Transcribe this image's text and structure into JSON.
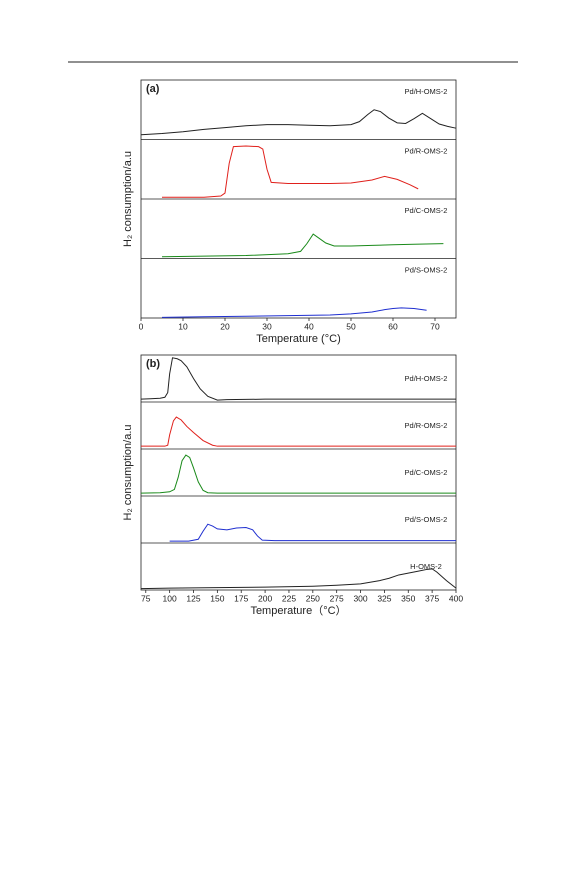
{
  "chart_data": [
    {
      "type": "line",
      "panel_label": "(a)",
      "xlabel": "Temperature (°C)",
      "ylabel": "H₂ consumption/a.u",
      "xlim": [
        0,
        75
      ],
      "xticks": [
        0,
        10,
        20,
        30,
        40,
        50,
        60,
        70
      ],
      "series": [
        {
          "name": "Pd/H-OMS-2",
          "color": "#222222",
          "x": [
            0,
            5,
            10,
            15,
            20,
            25,
            30,
            35,
            40,
            45,
            50,
            52,
            54,
            55.5,
            57,
            59,
            61,
            63,
            65,
            67,
            69,
            71,
            73,
            75
          ],
          "values": [
            8,
            10,
            13,
            17,
            20,
            23,
            25,
            25,
            24,
            23,
            25,
            30,
            42,
            50,
            47,
            36,
            28,
            27,
            35,
            44,
            35,
            26,
            22,
            19
          ]
        },
        {
          "name": "Pd/R-OMS-2",
          "color": "#e0201b",
          "x": [
            5,
            10,
            15,
            19,
            20,
            21,
            22,
            25,
            28,
            29,
            30,
            31,
            35,
            40,
            45,
            50,
            55,
            58,
            61,
            64,
            66
          ],
          "values": [
            3,
            3,
            3,
            5,
            10,
            60,
            88,
            89,
            88,
            84,
            50,
            28,
            26,
            26,
            26,
            27,
            32,
            38,
            33,
            24,
            17
          ]
        },
        {
          "name": "Pd/C-OMS-2",
          "color": "#1a8a1a",
          "x": [
            5,
            15,
            25,
            35,
            38,
            39.5,
            41,
            42,
            44,
            46,
            50,
            55,
            60,
            65,
            72
          ],
          "values": [
            3,
            4,
            5,
            8,
            12,
            25,
            41,
            36,
            26,
            21,
            21,
            22,
            23,
            24,
            25
          ]
        },
        {
          "name": "Pd/S-OMS-2",
          "color": "#1f2fd0",
          "x": [
            5,
            15,
            25,
            35,
            45,
            50,
            55,
            58,
            60,
            62,
            65,
            68
          ],
          "values": [
            1,
            2,
            3,
            4,
            5,
            7,
            10,
            14,
            16,
            17,
            16,
            13
          ]
        }
      ]
    },
    {
      "type": "line",
      "panel_label": "(b)",
      "xlabel": "Temperature（°C）",
      "ylabel": "H₂ consumption/a.u",
      "xlim": [
        70,
        400
      ],
      "xticks": [
        75,
        100,
        125,
        150,
        175,
        200,
        225,
        250,
        275,
        300,
        325,
        350,
        375,
        400
      ],
      "series": [
        {
          "name": "Pd/H-OMS-2",
          "color": "#222222",
          "x": [
            70,
            80,
            90,
            95,
            98,
            100,
            103,
            108,
            112,
            118,
            125,
            132,
            140,
            150,
            160,
            200,
            300,
            400
          ],
          "values": [
            6,
            7,
            8,
            10,
            20,
            60,
            94,
            92,
            88,
            75,
            50,
            28,
            12,
            4,
            5,
            6,
            6,
            6
          ]
        },
        {
          "name": "Pd/R-OMS-2",
          "color": "#e0201b",
          "x": [
            70,
            90,
            95,
            98,
            100,
            104,
            107,
            112,
            118,
            125,
            135,
            145,
            150,
            200,
            300,
            400
          ],
          "values": [
            6,
            6,
            6,
            8,
            30,
            60,
            68,
            62,
            48,
            35,
            18,
            8,
            6,
            6,
            6,
            6
          ]
        },
        {
          "name": "Pd/C-OMS-2",
          "color": "#1a8a1a",
          "x": [
            70,
            90,
            100,
            105,
            109,
            113,
            117,
            121,
            125,
            130,
            135,
            140,
            150,
            200,
            300,
            400
          ],
          "values": [
            6,
            7,
            9,
            14,
            40,
            75,
            87,
            82,
            60,
            30,
            12,
            7,
            6,
            6,
            6,
            6
          ]
        },
        {
          "name": "Pd/S-OMS-2",
          "color": "#1f2fd0",
          "x": [
            100,
            110,
            120,
            130,
            135,
            140,
            145,
            150,
            160,
            170,
            180,
            187,
            192,
            197,
            210,
            250,
            300,
            400
          ],
          "values": [
            4,
            4,
            4,
            8,
            25,
            40,
            36,
            30,
            28,
            32,
            33,
            28,
            15,
            6,
            5,
            5,
            5,
            5
          ]
        },
        {
          "name": "H-OMS-2",
          "color": "#222222",
          "x": [
            70,
            100,
            150,
            200,
            250,
            275,
            300,
            320,
            330,
            340,
            350,
            360,
            370,
            375,
            380,
            390,
            400
          ],
          "values": [
            3,
            4,
            5,
            6,
            8,
            10,
            13,
            20,
            25,
            32,
            36,
            40,
            44,
            45,
            38,
            20,
            4
          ]
        }
      ]
    }
  ]
}
